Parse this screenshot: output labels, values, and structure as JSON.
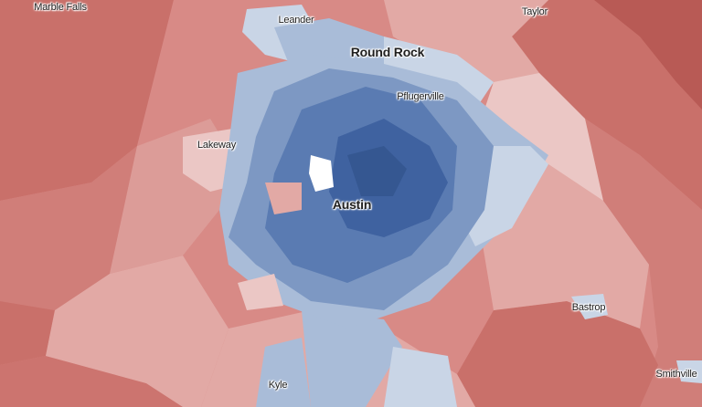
{
  "map": {
    "colors": {
      "deep_blue": "#3f62a0",
      "blue": "#5a7bb2",
      "mid_blue": "#7d98c3",
      "light_blue": "#a9bcd8",
      "pale_blue": "#c9d5e6",
      "pale_pink": "#ebc7c5",
      "pink": "#e2a9a5",
      "salmon": "#d88a86",
      "red": "#c9706a",
      "deep_red": "#b85a55"
    },
    "places": {
      "marble_falls": "Marble Falls",
      "leander": "Leander",
      "taylor": "Taylor",
      "round_rock": "Round Rock",
      "pflugerville": "Pflugerville",
      "lakeway": "Lakeway",
      "austin": "Austin",
      "bastrop": "Bastrop",
      "kyle": "Kyle",
      "smithville": "Smithville"
    }
  }
}
